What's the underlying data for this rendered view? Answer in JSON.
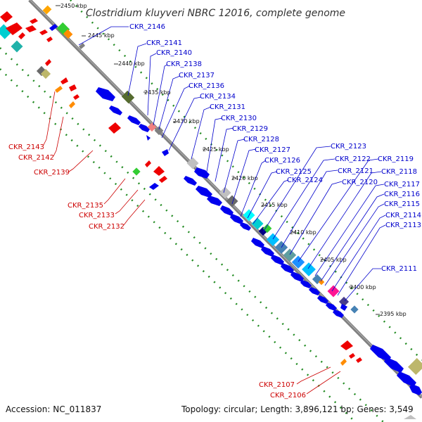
{
  "title": "Clostridium kluyveri NBRC 12016, complete genome",
  "accession_text": "Accession: NC_011837",
  "topology_text": "Topology: circular; Length: 3,896,121 bp; Genes: 3,549",
  "ticks": [
    "2450 kbp",
    "2445 kbp",
    "2440 kbp",
    "2435 kbp",
    "2430 kbp",
    "2425 kbp",
    "2420 kbp",
    "2415 kbp",
    "2410 kbp",
    "2405 kbp",
    "2400 kbp",
    "2395 kbp"
  ],
  "blue_labels": [
    "CKR_2146",
    "CKR_2141",
    "CKR_2140",
    "CKR_2138",
    "CKR_2137",
    "CKR_2136",
    "CKR_2134",
    "CKR_2131",
    "CKR_2130",
    "CKR_2129",
    "CKR_2128",
    "CKR_2127",
    "CKR_2126",
    "CKR_2125",
    "CKR_2124",
    "CKR_2123",
    "CKR_2122",
    "CKR_2121",
    "CKR_2120",
    "CKR_2119",
    "CKR_2118",
    "CKR_2117",
    "CKR_2116",
    "CKR_2115",
    "CKR_2114",
    "CKR_2113",
    "CKR_2111"
  ],
  "red_labels": [
    "CKR_2143",
    "CKR_2142",
    "CKR_2139",
    "CKR_2135",
    "CKR_2133",
    "CKR_2132",
    "CKR_2107",
    "CKR_2106"
  ],
  "colors": {
    "backbone": "#808080",
    "forward_cds": "#0000ee",
    "reverse_cds": "#ee0000",
    "ring_dots": "#228b22",
    "label_blue": "#0000cc",
    "label_red": "#cc0000"
  }
}
